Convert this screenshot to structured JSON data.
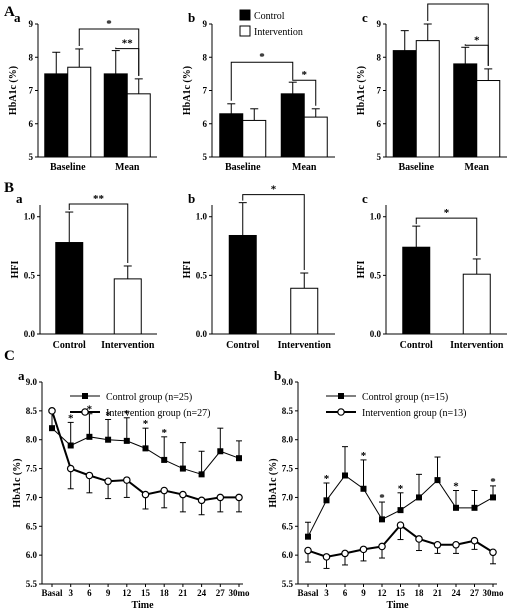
{
  "colors": {
    "control": "#000000",
    "intervention": "#ffffff",
    "stroke": "#000000"
  },
  "panel_labels": {
    "A": "A",
    "B": "B",
    "C": "C"
  },
  "legend": {
    "control": "Control",
    "intervention": "Intervention"
  },
  "chart_data": [
    {
      "id": "A-a",
      "sublabel": "a",
      "type": "bar",
      "ylabel": "HbA1c (%)",
      "ylim": [
        5,
        9
      ],
      "yticks": [
        5,
        6,
        7,
        8,
        9
      ],
      "categories": [
        "Baseline",
        "Mean"
      ],
      "series": [
        {
          "name": "Control",
          "values": [
            7.5,
            7.5
          ],
          "errors": [
            0.65,
            0.7
          ]
        },
        {
          "name": "Intervention",
          "values": [
            7.7,
            6.9
          ],
          "errors": [
            0.55,
            0.45
          ]
        }
      ],
      "brackets": [
        {
          "from": [
            0,
            1
          ],
          "to": [
            1,
            1
          ],
          "label": "*"
        },
        {
          "from": [
            1,
            0
          ],
          "to": [
            1,
            1
          ],
          "label": "**"
        }
      ]
    },
    {
      "id": "A-b",
      "sublabel": "b",
      "type": "bar",
      "ylabel": "HbA1c (%)",
      "ylim": [
        5,
        9
      ],
      "yticks": [
        5,
        6,
        7,
        8,
        9
      ],
      "categories": [
        "Baseline",
        "Mean"
      ],
      "series": [
        {
          "name": "Control",
          "values": [
            6.3,
            6.9
          ],
          "errors": [
            0.3,
            0.35
          ]
        },
        {
          "name": "Intervention",
          "values": [
            6.1,
            6.2
          ],
          "errors": [
            0.35,
            0.25
          ]
        }
      ],
      "brackets": [
        {
          "from": [
            0,
            0
          ],
          "to": [
            1,
            0
          ],
          "label": "*"
        },
        {
          "from": [
            1,
            0
          ],
          "to": [
            1,
            1
          ],
          "label": "*"
        }
      ]
    },
    {
      "id": "A-c",
      "sublabel": "c",
      "type": "bar",
      "ylabel": "HbA1c (%)",
      "ylim": [
        5,
        9
      ],
      "yticks": [
        5,
        6,
        7,
        8,
        9
      ],
      "categories": [
        "Baseline",
        "Mean"
      ],
      "series": [
        {
          "name": "Control",
          "values": [
            8.2,
            7.8
          ],
          "errors": [
            0.6,
            0.5
          ]
        },
        {
          "name": "Intervention",
          "values": [
            8.5,
            7.3
          ],
          "errors": [
            0.5,
            0.35
          ]
        }
      ],
      "brackets": [
        {
          "from": [
            0,
            1
          ],
          "to": [
            1,
            1
          ],
          "label": "*"
        },
        {
          "from": [
            1,
            0
          ],
          "to": [
            1,
            1
          ],
          "label": "*"
        }
      ]
    },
    {
      "id": "B-a",
      "sublabel": "a",
      "type": "bar",
      "ylabel": "HFI",
      "ylim": [
        0,
        1.1
      ],
      "yticks": [
        0.0,
        0.5,
        1.0
      ],
      "ytick_labels": [
        "0.0",
        "0.5",
        "1.0"
      ],
      "categories": [
        "Control",
        "Intervention"
      ],
      "values": [
        0.78,
        0.47
      ],
      "errors": [
        0.26,
        0.11
      ],
      "brackets": [
        {
          "from": 0,
          "to": 1,
          "label": "**"
        }
      ]
    },
    {
      "id": "B-b",
      "sublabel": "b",
      "type": "bar",
      "ylabel": "HFI",
      "ylim": [
        0,
        1.1
      ],
      "yticks": [
        0.0,
        0.5,
        1.0
      ],
      "ytick_labels": [
        "0.0",
        "0.5",
        "1.0"
      ],
      "categories": [
        "Control",
        "Intervention"
      ],
      "values": [
        0.84,
        0.39
      ],
      "errors": [
        0.28,
        0.13
      ],
      "brackets": [
        {
          "from": 0,
          "to": 1,
          "label": "*"
        }
      ]
    },
    {
      "id": "B-c",
      "sublabel": "c",
      "type": "bar",
      "ylabel": "HFI",
      "ylim": [
        0,
        1.1
      ],
      "yticks": [
        0.0,
        0.5,
        1.0
      ],
      "ytick_labels": [
        "0.0",
        "0.5",
        "1.0"
      ],
      "categories": [
        "Control",
        "Intervention"
      ],
      "values": [
        0.74,
        0.51
      ],
      "errors": [
        0.18,
        0.13
      ],
      "brackets": [
        {
          "from": 0,
          "to": 1,
          "label": "*"
        }
      ]
    },
    {
      "id": "C-a",
      "sublabel": "a",
      "type": "line",
      "xlabel": "Time",
      "ylabel": "HbA1c (%)",
      "ylim": [
        5.5,
        9.0
      ],
      "yticks": [
        5.5,
        6.0,
        6.5,
        7.0,
        7.5,
        8.0,
        8.5,
        9.0
      ],
      "ytick_labels": [
        "5.5",
        "6.0",
        "6.5",
        "7.0",
        "7.5",
        "8.0",
        "8.5",
        "9.0"
      ],
      "x": [
        "Basal",
        "3",
        "6",
        "9",
        "12",
        "15",
        "18",
        "21",
        "24",
        "27",
        "30mo"
      ],
      "series": [
        {
          "name": "Control group (n=25)",
          "marker": "square",
          "values": [
            8.2,
            7.9,
            8.05,
            8.0,
            7.98,
            7.85,
            7.65,
            7.5,
            7.4,
            7.8,
            7.68
          ],
          "errors": [
            0.3,
            0.4,
            0.4,
            0.35,
            0.4,
            0.35,
            0.4,
            0.45,
            0.4,
            0.4,
            0.3
          ]
        },
        {
          "name": "Intervention group (n=27)",
          "marker": "circle",
          "values": [
            8.5,
            7.5,
            7.38,
            7.28,
            7.3,
            7.05,
            7.12,
            7.05,
            6.95,
            7.0,
            7.0
          ],
          "errors": [
            0.3,
            0.35,
            0.3,
            0.3,
            0.3,
            0.25,
            0.3,
            0.3,
            0.25,
            0.25,
            0.25
          ]
        }
      ],
      "star_indices": [
        1,
        2,
        3,
        4,
        5,
        6
      ]
    },
    {
      "id": "C-b",
      "sublabel": "b",
      "type": "line",
      "xlabel": "Time",
      "ylabel": "HbA1c (%)",
      "ylim": [
        5.5,
        9.0
      ],
      "yticks": [
        5.5,
        6.0,
        6.5,
        7.0,
        7.5,
        8.0,
        8.5,
        9.0
      ],
      "ytick_labels": [
        "5.5",
        "6.0",
        "6.5",
        "7.0",
        "7.5",
        "8.0",
        "8.5",
        "9.0"
      ],
      "x": [
        "Basal",
        "3",
        "6",
        "9",
        "12",
        "15",
        "18",
        "21",
        "24",
        "27",
        "30mo"
      ],
      "series": [
        {
          "name": "Control group (n=15)",
          "marker": "square",
          "values": [
            6.32,
            6.95,
            7.38,
            7.15,
            6.62,
            6.78,
            7.0,
            7.3,
            6.82,
            6.82,
            7.0
          ],
          "errors": [
            0.25,
            0.3,
            0.5,
            0.5,
            0.3,
            0.3,
            0.4,
            0.4,
            0.3,
            0.3,
            0.2
          ]
        },
        {
          "name": "Intervention group (n=13)",
          "marker": "circle",
          "values": [
            6.08,
            5.97,
            6.03,
            6.1,
            6.15,
            6.52,
            6.28,
            6.18,
            6.18,
            6.25,
            6.05
          ],
          "errors": [
            0.2,
            0.2,
            0.2,
            0.2,
            0.2,
            0.25,
            0.2,
            0.15,
            0.15,
            0.15,
            0.2
          ]
        }
      ],
      "star_indices": [
        1,
        3,
        4,
        5,
        8,
        10
      ]
    }
  ]
}
